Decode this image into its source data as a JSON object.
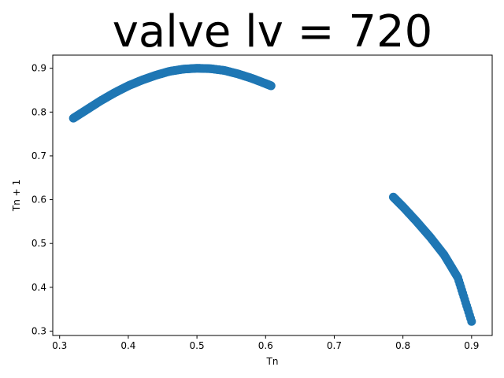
{
  "chart_data": {
    "type": "scatter",
    "title": "valve lv = 720",
    "xlabel": "Tn",
    "ylabel": "Tn + 1",
    "xlim": [
      0.29,
      0.93
    ],
    "ylim": [
      0.29,
      0.93
    ],
    "xticks": [
      "0.3",
      "0.4",
      "0.5",
      "0.6",
      "0.7",
      "0.8",
      "0.9"
    ],
    "yticks": [
      "0.3",
      "0.4",
      "0.5",
      "0.6",
      "0.7",
      "0.8",
      "0.9"
    ],
    "grid": false,
    "legend": "none",
    "marker_color": "#1f77b4",
    "series": [
      {
        "points": [
          [
            0.32,
            0.786
          ],
          [
            0.34,
            0.806
          ],
          [
            0.36,
            0.826
          ],
          [
            0.38,
            0.844
          ],
          [
            0.4,
            0.86
          ],
          [
            0.42,
            0.873
          ],
          [
            0.44,
            0.884
          ],
          [
            0.46,
            0.893
          ],
          [
            0.48,
            0.898
          ],
          [
            0.5,
            0.9
          ],
          [
            0.52,
            0.899
          ],
          [
            0.54,
            0.895
          ],
          [
            0.56,
            0.887
          ],
          [
            0.58,
            0.877
          ],
          [
            0.6,
            0.865
          ],
          [
            0.608,
            0.86
          ]
        ]
      },
      {
        "points": [
          [
            0.786,
            0.606
          ],
          [
            0.8,
            0.584
          ],
          [
            0.82,
            0.55
          ],
          [
            0.84,
            0.514
          ],
          [
            0.86,
            0.474
          ],
          [
            0.88,
            0.422
          ],
          [
            0.9,
            0.322
          ]
        ]
      }
    ]
  }
}
